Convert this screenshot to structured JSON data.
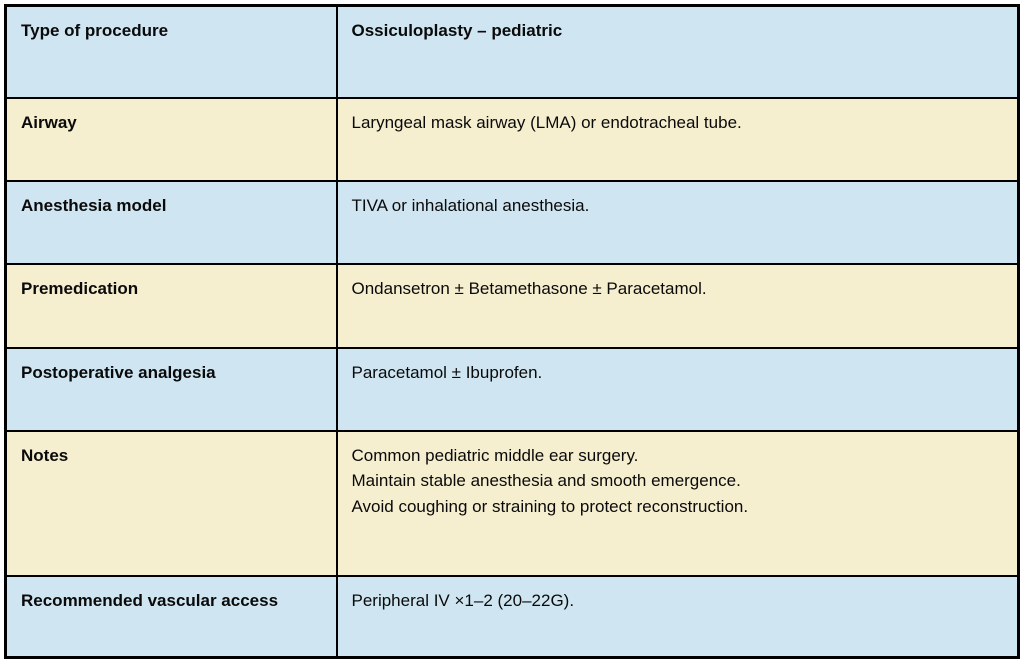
{
  "colors": {
    "row-blue": "#cfe6f2",
    "row-cream": "#f5eecf",
    "border-color": "#000000",
    "text-color": "#0a0a0a",
    "page-bg": "#ffffff"
  },
  "table": {
    "title": "Ossiculoplasty – pediatric",
    "rows": [
      {
        "label": "Type of procedure",
        "value": "Ossiculoplasty – pediatric"
      },
      {
        "label": "Airway",
        "value": "Laryngeal mask airway (LMA) or endotracheal tube."
      },
      {
        "label": "Anesthesia model",
        "value": "TIVA or inhalational anesthesia."
      },
      {
        "label": "Premedication",
        "value": "Ondansetron ± Betamethasone ± Paracetamol."
      },
      {
        "label": "Postoperative analgesia",
        "value": "Paracetamol ± Ibuprofen."
      },
      {
        "label": "Notes",
        "lines": [
          "Common pediatric middle ear surgery.",
          "Maintain stable anesthesia and smooth emergence.",
          "Avoid coughing or straining to protect reconstruction."
        ]
      },
      {
        "label": "Recommended vascular access",
        "value": "Peripheral IV ×1–2 (20–22G)."
      }
    ]
  }
}
